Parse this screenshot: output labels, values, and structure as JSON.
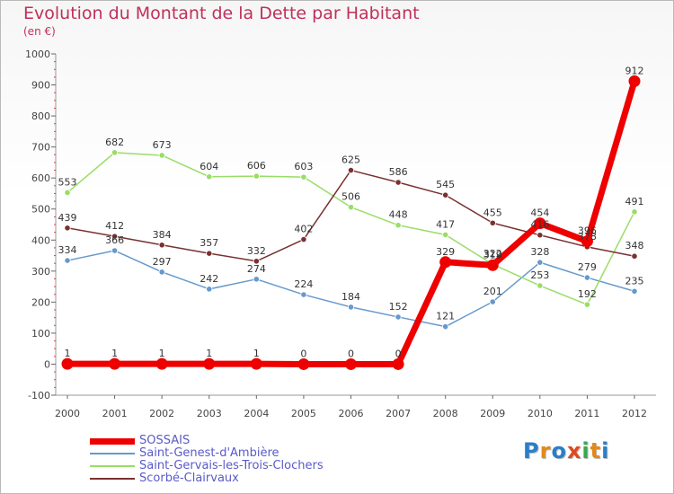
{
  "title": "Evolution du Montant de la Dette par Habitant",
  "unit": "(en €)",
  "logo": "Proxiti",
  "chart_data": {
    "type": "line",
    "x": [
      "2000",
      "2001",
      "2002",
      "2003",
      "2004",
      "2005",
      "2006",
      "2007",
      "2008",
      "2009",
      "2010",
      "2011",
      "2012"
    ],
    "ylim": [
      -100,
      1000
    ],
    "yticks": [
      -100,
      0,
      100,
      200,
      300,
      400,
      500,
      600,
      700,
      800,
      900,
      1000
    ],
    "grid": false,
    "legend_position": "bottom-left",
    "series": [
      {
        "name": "Saint-Genest-d'Ambière",
        "color": "#6699cc",
        "highlight": false,
        "values": [
          334,
          366,
          297,
          242,
          274,
          224,
          184,
          152,
          121,
          201,
          328,
          279,
          235
        ]
      },
      {
        "name": "Saint-Gervais-les-Trois-Clochers",
        "color": "#99dd66",
        "highlight": false,
        "values": [
          553,
          682,
          673,
          604,
          606,
          603,
          506,
          448,
          417,
          322,
          253,
          192,
          491
        ]
      },
      {
        "name": "Scorbé-Clairvaux",
        "color": "#7a3030",
        "highlight": false,
        "values": [
          439,
          412,
          384,
          357,
          332,
          402,
          625,
          586,
          545,
          455,
          416,
          378,
          348
        ]
      },
      {
        "name": "SOSSAIS",
        "color": "#ee0000",
        "highlight": true,
        "values": [
          1,
          1,
          1,
          1,
          1,
          0,
          0,
          0,
          329,
          319,
          454,
          396,
          912
        ]
      }
    ]
  }
}
